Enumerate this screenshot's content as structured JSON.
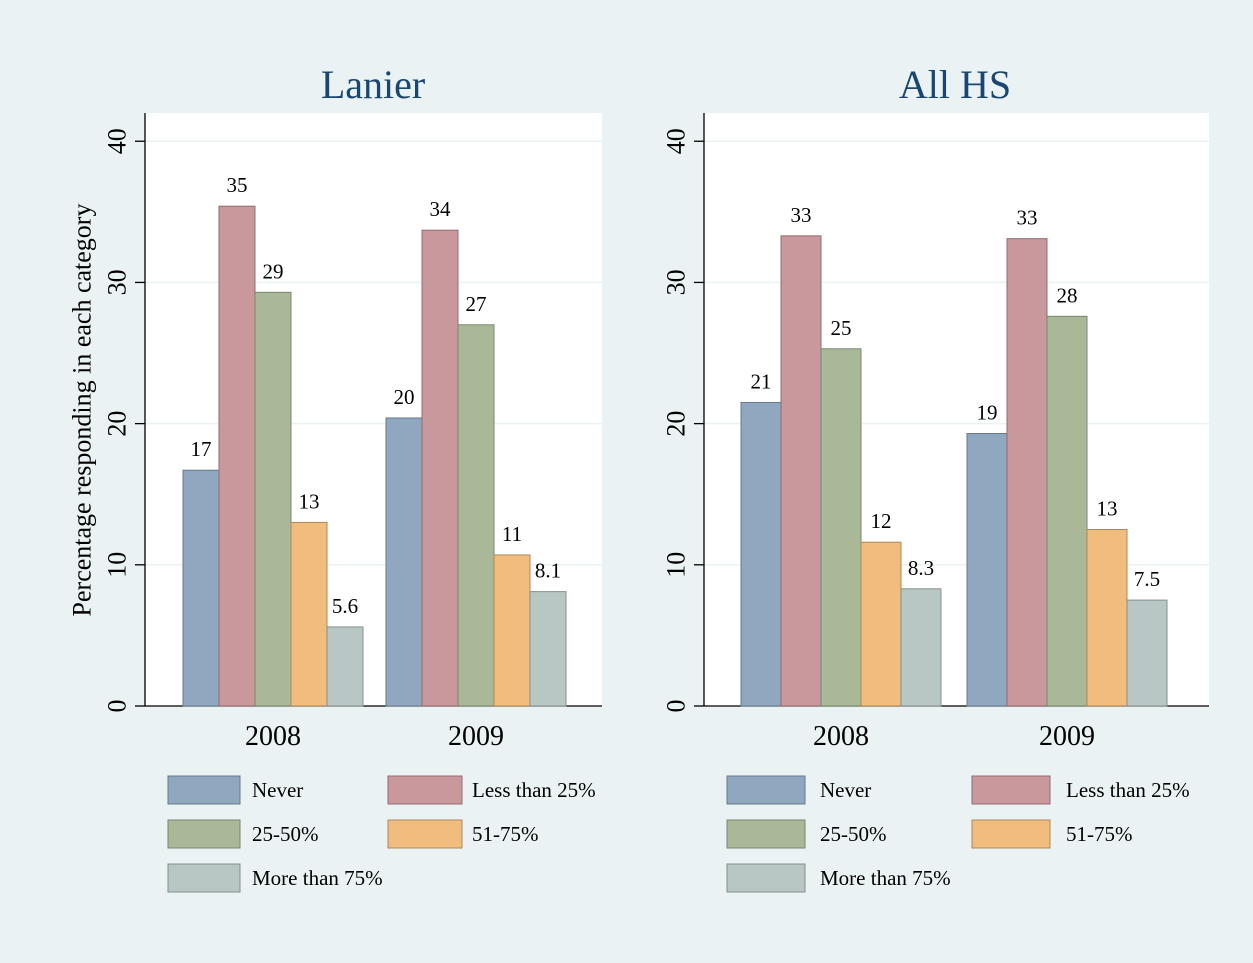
{
  "chart_data": [
    {
      "type": "bar",
      "title": "Lanier",
      "ylabel": "Percentage responding in each category",
      "xlabel": "",
      "ylim": [
        0,
        42
      ],
      "yticks": [
        "0",
        "10",
        "20",
        "30",
        "40"
      ],
      "grid": true,
      "legend_position": "bottom",
      "categories": [
        "2008",
        "2009"
      ],
      "series": [
        {
          "name": "Never",
          "color": "#90a8bf",
          "values": [
            16.7,
            20.4
          ],
          "labels": [
            "17",
            "20"
          ]
        },
        {
          "name": "Less than 25%",
          "color": "#c9989c",
          "values": [
            35.4,
            33.7
          ],
          "labels": [
            "35",
            "34"
          ]
        },
        {
          "name": "25-50%",
          "color": "#a9b997",
          "values": [
            29.3,
            27.0
          ],
          "labels": [
            "29",
            "27"
          ]
        },
        {
          "name": "51-75%",
          "color": "#f0bd7e",
          "values": [
            13.0,
            10.7
          ],
          "labels": [
            "13",
            "11"
          ]
        },
        {
          "name": "More than 75%",
          "color": "#b9c7c4",
          "values": [
            5.6,
            8.1
          ],
          "labels": [
            "5.6",
            "8.1"
          ]
        }
      ]
    },
    {
      "type": "bar",
      "title": "All HS",
      "ylabel": "",
      "xlabel": "",
      "ylim": [
        0,
        42
      ],
      "yticks": [
        "0",
        "10",
        "20",
        "30",
        "40"
      ],
      "grid": true,
      "legend_position": "bottom",
      "categories": [
        "2008",
        "2009"
      ],
      "series": [
        {
          "name": "Never",
          "color": "#90a8bf",
          "values": [
            21.5,
            19.3
          ],
          "labels": [
            "21",
            "19"
          ]
        },
        {
          "name": "Less than 25%",
          "color": "#c9989c",
          "values": [
            33.3,
            33.1
          ],
          "labels": [
            "33",
            "33"
          ]
        },
        {
          "name": "25-50%",
          "color": "#a9b997",
          "values": [
            25.3,
            27.6
          ],
          "labels": [
            "25",
            "28"
          ]
        },
        {
          "name": "51-75%",
          "color": "#f0bd7e",
          "values": [
            11.6,
            12.5
          ],
          "labels": [
            "12",
            "13"
          ]
        },
        {
          "name": "More than 75%",
          "color": "#b9c7c4",
          "values": [
            8.3,
            7.5
          ],
          "labels": [
            "8.3",
            "7.5"
          ]
        }
      ]
    }
  ]
}
